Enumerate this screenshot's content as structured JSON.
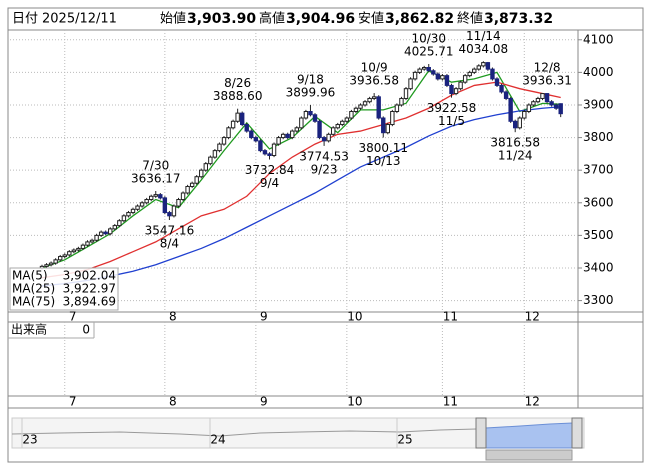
{
  "header": {
    "date_label": "日付",
    "date": "2025/12/11",
    "fields": [
      {
        "name": "始値",
        "value": 3903.9,
        "label": "3,903.90",
        "color": "#000000"
      },
      {
        "name": "高値",
        "value": 3904.96,
        "label": "3,904.96",
        "color": "#e02020"
      },
      {
        "name": "安値",
        "value": 3862.82,
        "label": "3,862.82",
        "color": "#1a8a1a"
      },
      {
        "name": "終値",
        "value": 3873.32,
        "label": "3,873.32",
        "color": "#000000"
      }
    ]
  },
  "chart_data": {
    "type": "candlestick",
    "categories": [
      null,
      null,
      null,
      null,
      null,
      "7",
      null,
      null,
      null,
      null,
      null,
      null,
      null,
      null,
      null,
      null,
      null,
      null,
      null,
      null,
      null,
      null,
      null,
      null,
      null,
      null,
      null,
      "8",
      null,
      null,
      null,
      null,
      null,
      null,
      null,
      null,
      null,
      null,
      null,
      null,
      null,
      null,
      null,
      null,
      null,
      null,
      null,
      "9",
      null,
      null,
      null,
      null,
      null,
      null,
      null,
      null,
      null,
      null,
      null,
      null,
      null,
      null,
      null,
      null,
      null,
      null,
      null,
      "10",
      null,
      null,
      null,
      null,
      null,
      null,
      null,
      null,
      null,
      null,
      null,
      null,
      null,
      null,
      null,
      null,
      null,
      null,
      null,
      null,
      "11",
      null,
      null,
      null,
      null,
      null,
      null,
      null,
      null,
      null,
      null,
      null,
      null,
      null,
      null,
      null,
      null,
      null,
      "12",
      null,
      null,
      null,
      null,
      null,
      null,
      null,
      null
    ],
    "open": [
      3400,
      3405,
      3410,
      3415,
      3425,
      3435,
      3440,
      3450,
      3455,
      3460,
      3470,
      3480,
      3485,
      3500,
      3510,
      3505,
      3520,
      3530,
      3545,
      3560,
      3570,
      3580,
      3590,
      3600,
      3610,
      3620,
      3625,
      3615,
      3570,
      3560,
      3590,
      3610,
      3630,
      3650,
      3660,
      3680,
      3700,
      3720,
      3740,
      3760,
      3780,
      3800,
      3830,
      3850,
      3875,
      3840,
      3820,
      3800,
      3790,
      3760,
      3750,
      3745,
      3780,
      3800,
      3810,
      3800,
      3820,
      3830,
      3860,
      3880,
      3870,
      3850,
      3800,
      3790,
      3810,
      3830,
      3840,
      3850,
      3860,
      3880,
      3890,
      3900,
      3910,
      3920,
      3925,
      3860,
      3815,
      3840,
      3880,
      3900,
      3920,
      3950,
      3980,
      4000,
      4010,
      4015,
      4005,
      3995,
      3980,
      3990,
      3960,
      3935,
      3950,
      3970,
      3990,
      4000,
      4010,
      4020,
      4030,
      4010,
      3980,
      3960,
      3940,
      3920,
      3850,
      3830,
      3860,
      3880,
      3900,
      3910,
      3920,
      3935,
      3910,
      3900,
      3903.9
    ],
    "high": [
      3410,
      3415,
      3420,
      3430,
      3440,
      3445,
      3455,
      3460,
      3465,
      3475,
      3485,
      3490,
      3505,
      3515,
      3515,
      3525,
      3535,
      3550,
      3565,
      3575,
      3585,
      3595,
      3605,
      3615,
      3625,
      3636.17,
      3630,
      3620,
      3575,
      3595,
      3615,
      3635,
      3655,
      3665,
      3685,
      3705,
      3725,
      3745,
      3765,
      3785,
      3805,
      3835,
      3855,
      3888.6,
      3880,
      3845,
      3825,
      3805,
      3795,
      3765,
      3755,
      3785,
      3805,
      3815,
      3815,
      3825,
      3835,
      3865,
      3885,
      3899.96,
      3875,
      3855,
      3805,
      3815,
      3835,
      3845,
      3855,
      3865,
      3885,
      3895,
      3905,
      3915,
      3925,
      3936.58,
      3930,
      3865,
      3845,
      3885,
      3905,
      3925,
      3955,
      3985,
      4005,
      4015,
      4020,
      4025.71,
      4010,
      4000,
      3995,
      3995,
      3965,
      3955,
      3975,
      3995,
      4005,
      4015,
      4025,
      4034.08,
      4032,
      4015,
      3985,
      3965,
      3945,
      3925,
      3855,
      3865,
      3885,
      3905,
      3915,
      3925,
      3936,
      3936.31,
      3915,
      3905,
      3904.96
    ],
    "low": [
      3395,
      3400,
      3405,
      3410,
      3420,
      3430,
      3435,
      3445,
      3450,
      3455,
      3465,
      3475,
      3480,
      3495,
      3500,
      3500,
      3515,
      3525,
      3540,
      3555,
      3565,
      3575,
      3585,
      3595,
      3605,
      3615,
      3610,
      3565,
      3547.16,
      3555,
      3585,
      3605,
      3625,
      3645,
      3655,
      3675,
      3695,
      3715,
      3735,
      3755,
      3775,
      3795,
      3825,
      3845,
      3835,
      3815,
      3795,
      3785,
      3755,
      3745,
      3732.84,
      3740,
      3775,
      3795,
      3795,
      3795,
      3815,
      3825,
      3855,
      3865,
      3845,
      3795,
      3774.53,
      3785,
      3805,
      3825,
      3835,
      3845,
      3855,
      3875,
      3885,
      3895,
      3905,
      3915,
      3855,
      3800.11,
      3810,
      3835,
      3875,
      3895,
      3915,
      3945,
      3975,
      3995,
      4005,
      4000,
      3990,
      3975,
      3975,
      3955,
      3922.58,
      3930,
      3945,
      3965,
      3985,
      3995,
      4005,
      4015,
      4005,
      3975,
      3955,
      3935,
      3915,
      3845,
      3816.58,
      3825,
      3855,
      3875,
      3895,
      3905,
      3915,
      3905,
      3895,
      3885,
      3862.82
    ],
    "close": [
      3405,
      3410,
      3415,
      3425,
      3435,
      3440,
      3450,
      3455,
      3460,
      3470,
      3480,
      3485,
      3500,
      3510,
      3505,
      3520,
      3530,
      3545,
      3560,
      3570,
      3580,
      3590,
      3600,
      3610,
      3620,
      3625,
      3615,
      3570,
      3560,
      3590,
      3610,
      3630,
      3650,
      3660,
      3680,
      3700,
      3720,
      3740,
      3760,
      3780,
      3800,
      3830,
      3850,
      3875,
      3840,
      3820,
      3800,
      3790,
      3760,
      3750,
      3745,
      3780,
      3800,
      3810,
      3800,
      3820,
      3830,
      3860,
      3880,
      3870,
      3850,
      3800,
      3790,
      3810,
      3830,
      3840,
      3850,
      3860,
      3880,
      3890,
      3900,
      3910,
      3920,
      3925,
      3860,
      3815,
      3840,
      3880,
      3900,
      3920,
      3950,
      3980,
      4000,
      4010,
      4015,
      4005,
      3995,
      3980,
      3990,
      3960,
      3935,
      3950,
      3970,
      3990,
      4000,
      4010,
      4020,
      4030,
      4010,
      3980,
      3960,
      3940,
      3920,
      3850,
      3830,
      3860,
      3880,
      3900,
      3910,
      3920,
      3935,
      3910,
      3900,
      3890,
      3873.32
    ],
    "up_color": "#ffffff",
    "down_color": "#1a237e",
    "ylim": [
      3265,
      4130
    ],
    "yticks": [
      3300,
      3400,
      3500,
      3600,
      3700,
      3800,
      3900,
      4000,
      4100
    ],
    "grid": true,
    "moving_averages": [
      {
        "name": "MA(5)",
        "color": "#1f9a1f",
        "x": [
          0,
          5,
          10,
          15,
          20,
          25,
          30,
          35,
          40,
          45,
          50,
          55,
          60,
          65,
          70,
          75,
          80,
          85,
          90,
          95,
          100,
          105,
          110,
          114
        ],
        "values": [
          3400,
          3425,
          3465,
          3505,
          3560,
          3610,
          3585,
          3670,
          3760,
          3845,
          3765,
          3800,
          3865,
          3815,
          3885,
          3885,
          3905,
          4005,
          3970,
          3980,
          4000,
          3880,
          3905,
          3902.04
        ],
        "last": {
          "value": 3902.04,
          "label": "3,902.04"
        }
      },
      {
        "name": "MA(25)",
        "color": "#e03030",
        "x": [
          0,
          5,
          10,
          15,
          20,
          25,
          30,
          35,
          40,
          45,
          50,
          55,
          60,
          65,
          70,
          75,
          80,
          85,
          90,
          95,
          100,
          105,
          110,
          114
        ],
        "values": [
          3370,
          3380,
          3395,
          3420,
          3450,
          3480,
          3520,
          3560,
          3580,
          3620,
          3690,
          3740,
          3780,
          3810,
          3820,
          3840,
          3860,
          3890,
          3930,
          3960,
          3970,
          3950,
          3935,
          3922.97
        ],
        "last": {
          "value": 3922.97,
          "label": "3,922.97"
        }
      },
      {
        "name": "MA(75)",
        "color": "#2040d0",
        "x": [
          0,
          5,
          10,
          15,
          20,
          25,
          30,
          35,
          40,
          45,
          50,
          55,
          60,
          65,
          70,
          75,
          80,
          85,
          90,
          95,
          100,
          105,
          110,
          114
        ],
        "values": [
          3345,
          3352,
          3362,
          3375,
          3390,
          3410,
          3435,
          3460,
          3490,
          3525,
          3560,
          3595,
          3630,
          3670,
          3710,
          3740,
          3770,
          3805,
          3835,
          3855,
          3870,
          3882,
          3890,
          3894.69
        ],
        "last": {
          "value": 3894.69,
          "label": "3,894.69"
        }
      }
    ],
    "high_annotations": [
      {
        "date": "7/30",
        "value": 3636.17,
        "label": "3636.17"
      },
      {
        "date": "8/26",
        "value": 3888.6,
        "label": "3888.60"
      },
      {
        "date": "9/18",
        "value": 3899.96,
        "label": "3899.96"
      },
      {
        "date": "10/9",
        "value": 3936.58,
        "label": "3936.58"
      },
      {
        "date": "10/30",
        "value": 4025.71,
        "label": "4025.71"
      },
      {
        "date": "11/14",
        "value": 4034.08,
        "label": "4034.08"
      },
      {
        "date": "12/8",
        "value": 3936.31,
        "label": "3936.31"
      }
    ],
    "low_annotations": [
      {
        "date": "8/4",
        "value": 3547.16,
        "label": "3547.16"
      },
      {
        "date": "9/4",
        "value": 3732.84,
        "label": "3732.84"
      },
      {
        "date": "9/23",
        "value": 3774.53,
        "label": "3774.53"
      },
      {
        "date": "10/13",
        "value": 3800.11,
        "label": "3800.11"
      },
      {
        "date": "11/5",
        "value": 3922.58,
        "label": "3922.58"
      },
      {
        "date": "11/24",
        "value": 3816.58,
        "label": "3816.58"
      }
    ],
    "volume": {
      "label": "出来高",
      "yticks": [
        0
      ]
    }
  },
  "navigator": {
    "labels": [
      "23",
      "24",
      "25"
    ]
  }
}
